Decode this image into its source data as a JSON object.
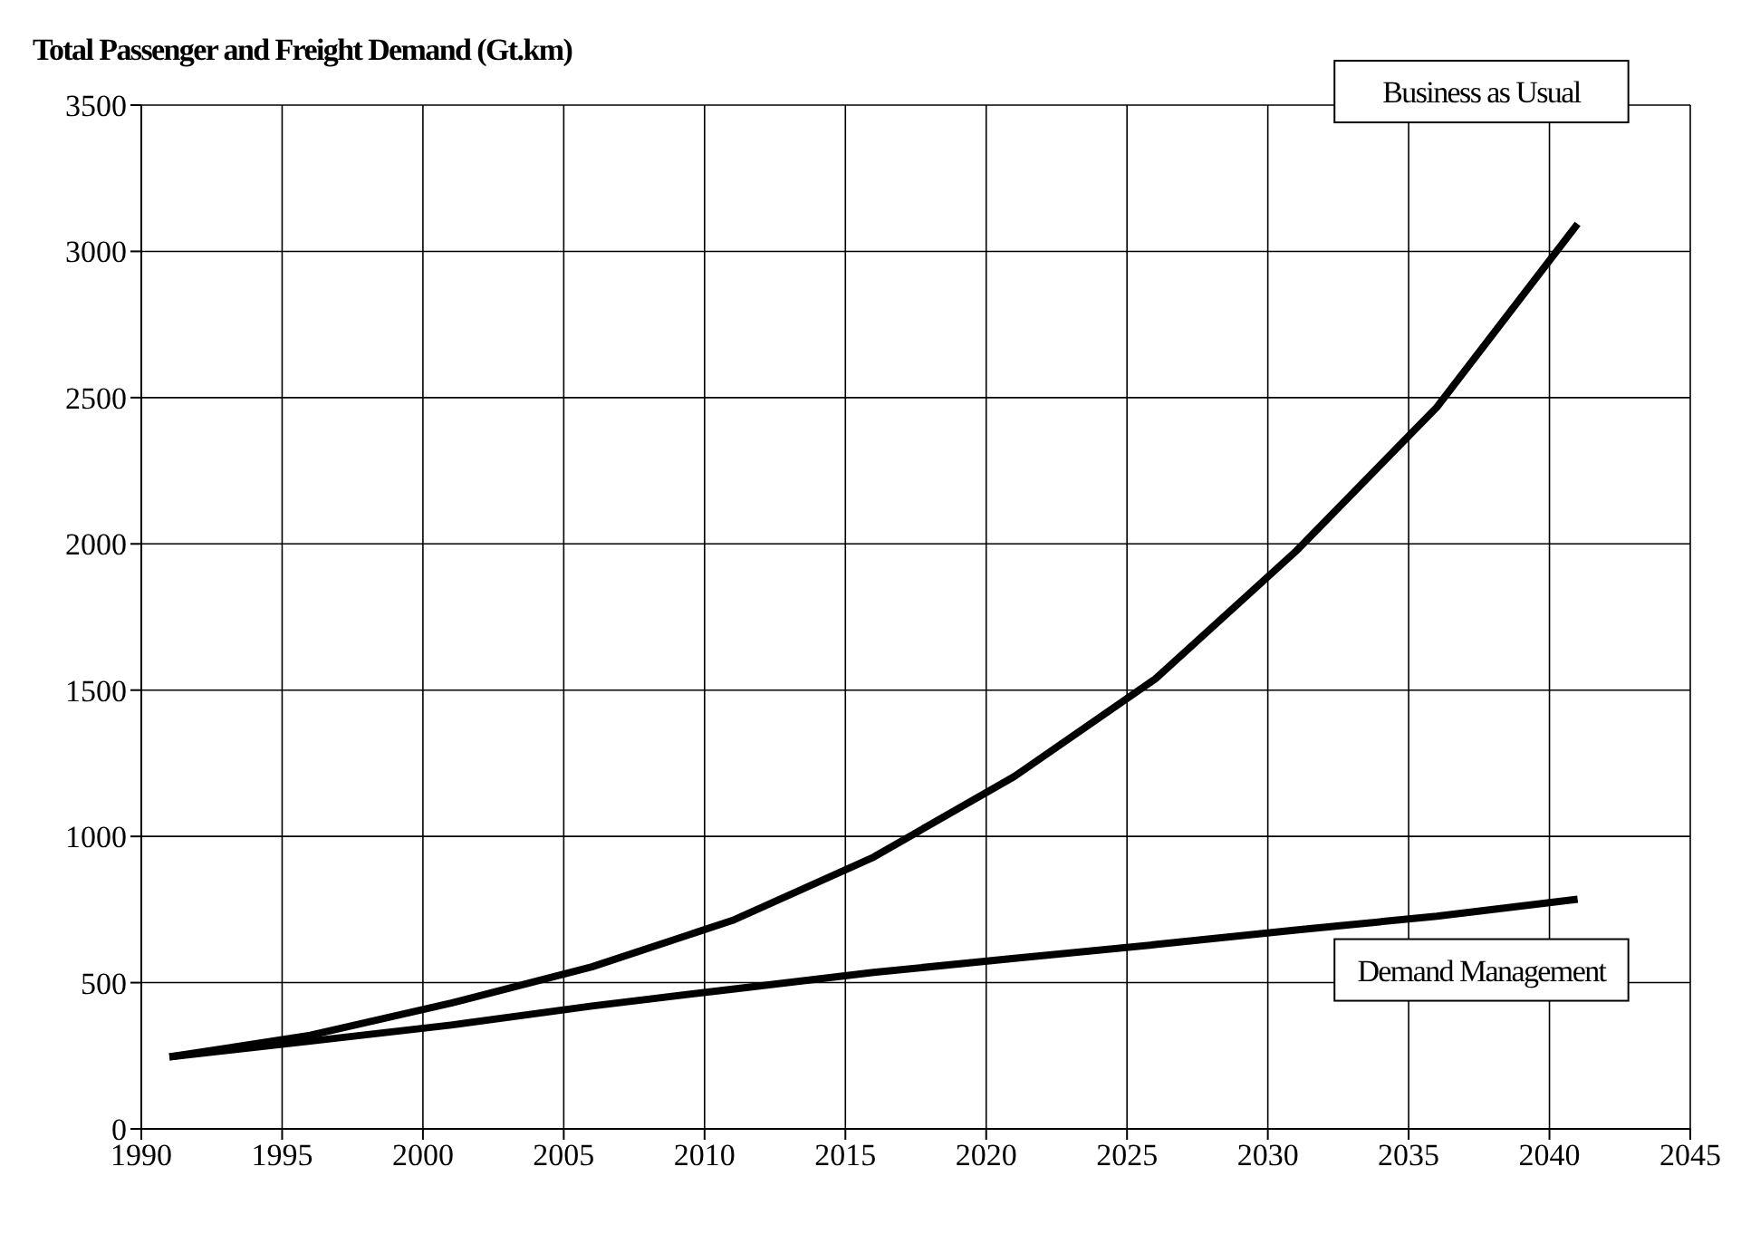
{
  "chart_data": {
    "type": "line",
    "title": "Total Passenger and Freight Demand (Gt.km)",
    "x": [
      1991,
      1996,
      2001,
      2006,
      2011,
      2016,
      2021,
      2026,
      2031,
      2036,
      2041
    ],
    "series": [
      {
        "name": "Business as Usual",
        "color": "#000000",
        "values": [
          246,
          320,
          430,
          554,
          713,
          929,
          1205,
          1538,
          1975,
          2467,
          3094
        ]
      },
      {
        "name": "Demand Management",
        "color": "#000000",
        "values": [
          246,
          300,
          355,
          420,
          478,
          535,
          583,
          630,
          680,
          727,
          785
        ]
      }
    ],
    "xlim": [
      1990,
      2045
    ],
    "xticks": [
      1990,
      1995,
      2000,
      2005,
      2010,
      2015,
      2020,
      2025,
      2030,
      2035,
      2040,
      2045
    ],
    "ylim": [
      0,
      3500
    ],
    "yticks": [
      0,
      500,
      1000,
      1500,
      2000,
      2500,
      3000,
      3500
    ],
    "grid": true,
    "legend": false,
    "marker": "none",
    "line_style": "solid"
  }
}
